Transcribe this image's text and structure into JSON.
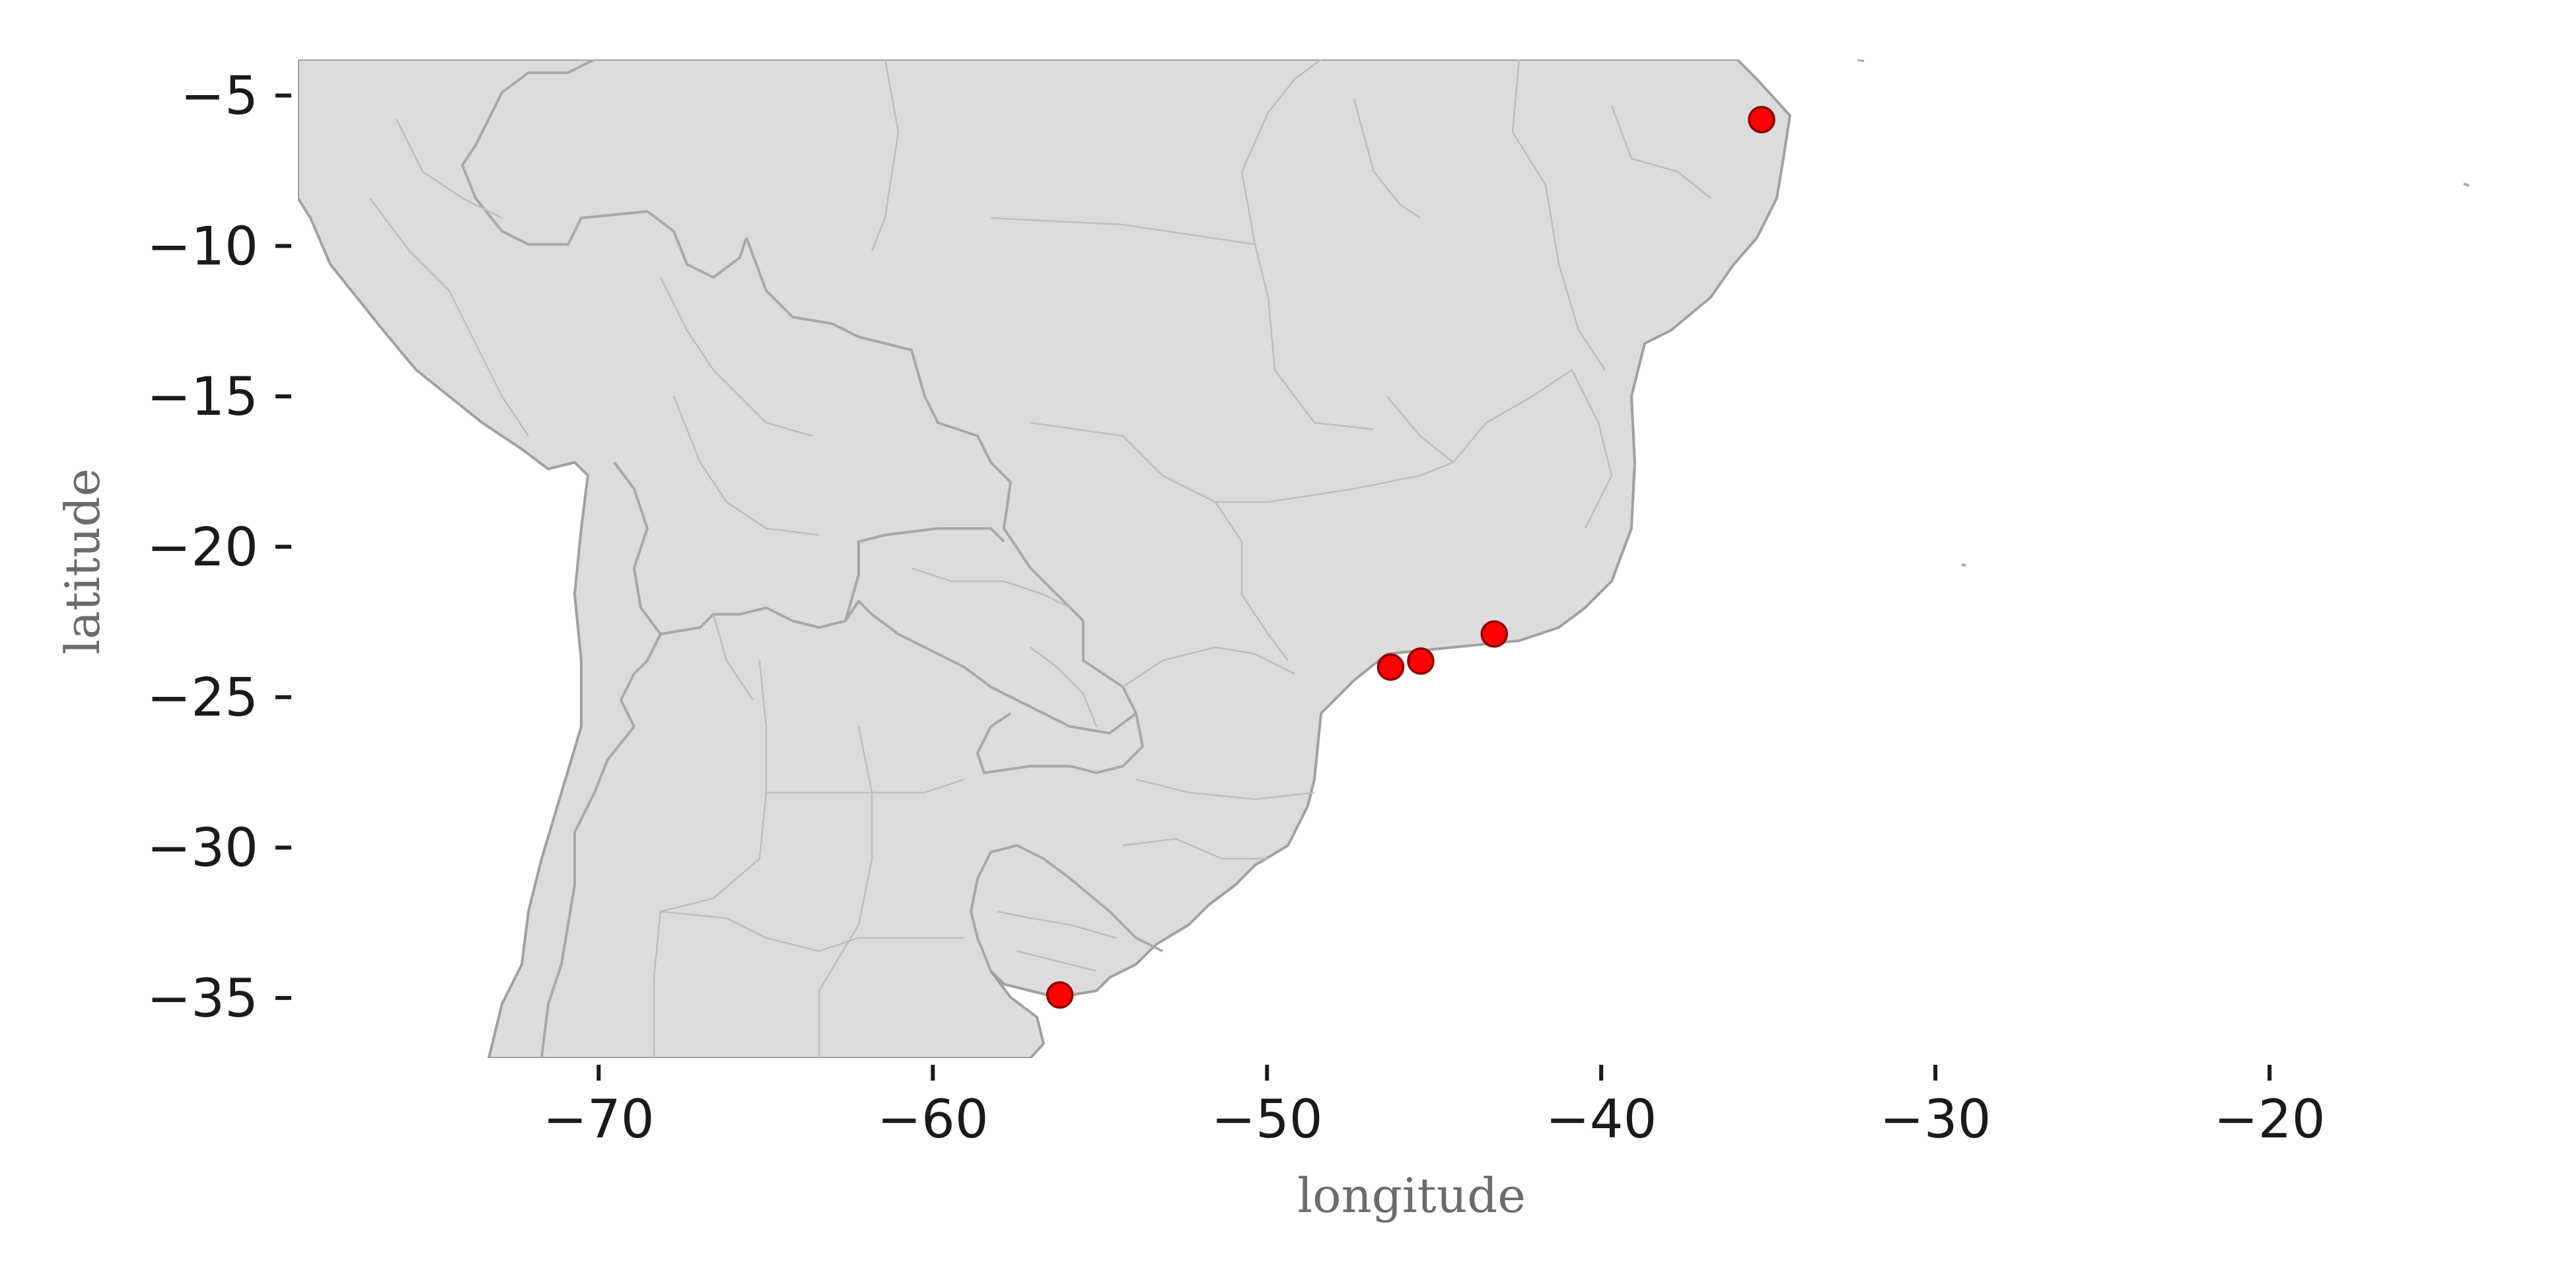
{
  "chart_data": {
    "type": "scatter",
    "xlabel": "longitude",
    "ylabel": "latitude",
    "xlim": [
      -79,
      -10
    ],
    "ylim": [
      -37,
      -3.8
    ],
    "x_ticks": [
      -70,
      -60,
      -50,
      -40,
      -30,
      -20
    ],
    "y_ticks": [
      -5,
      -10,
      -15,
      -20,
      -25,
      -30,
      -35
    ],
    "x_tick_labels": [
      "−70",
      "−60",
      "−50",
      "−40",
      "−30",
      "−20"
    ],
    "y_tick_labels": [
      "−5",
      "−10",
      "−15",
      "−20",
      "−25",
      "−30",
      "−35"
    ],
    "grid": false,
    "basemap": "South America political boundaries",
    "colors": {
      "land": "#dcdcdc",
      "border": "#a0a0a0",
      "point_fill": "#ff0000",
      "point_edge": "#8b0000"
    },
    "points": [
      {
        "x": -35.2,
        "y": -5.8
      },
      {
        "x": -43.2,
        "y": -22.9
      },
      {
        "x": -45.4,
        "y": -23.8
      },
      {
        "x": -46.3,
        "y": -24.0
      },
      {
        "x": -56.2,
        "y": -34.9
      }
    ]
  }
}
